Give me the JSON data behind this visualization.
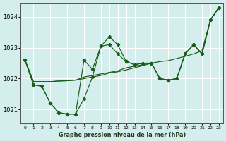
{
  "title": "Graphe pression niveau de la mer (hPa)",
  "bg_color": "#d4eeee",
  "line_color": "#1a5c1a",
  "x": [
    0,
    1,
    2,
    3,
    4,
    5,
    6,
    7,
    8,
    9,
    10,
    11,
    12,
    13,
    14,
    15,
    16,
    17,
    18,
    19,
    20,
    21,
    22,
    23
  ],
  "line1": [
    1022.6,
    1021.8,
    1021.75,
    1021.2,
    1020.9,
    1020.85,
    1020.85,
    1021.35,
    1022.05,
    1023.05,
    1023.35,
    1023.1,
    1022.55,
    1022.45,
    1022.5,
    1022.5,
    1022.0,
    1021.95,
    1022.0,
    1022.8,
    1023.1,
    1022.8,
    1023.9,
    1024.3
  ],
  "line2": [
    1022.6,
    1021.8,
    1021.75,
    1021.2,
    1020.9,
    1020.85,
    1020.85,
    1022.6,
    1022.3,
    1023.05,
    1023.1,
    1022.8,
    1022.55,
    1022.45,
    1022.5,
    1022.5,
    1022.0,
    1021.95,
    1022.0,
    1022.8,
    1023.1,
    1022.8,
    1023.9,
    1024.3
  ],
  "line3": [
    1022.6,
    1021.9,
    1021.9,
    1021.9,
    1021.92,
    1021.93,
    1021.95,
    1022.0,
    1022.05,
    1022.1,
    1022.18,
    1022.22,
    1022.28,
    1022.35,
    1022.42,
    1022.5,
    1022.55,
    1022.58,
    1022.65,
    1022.72,
    1022.8,
    1022.9,
    1023.9,
    1024.3
  ],
  "line4": [
    1022.6,
    1021.9,
    1021.9,
    1021.9,
    1021.92,
    1021.93,
    1021.95,
    1022.05,
    1022.1,
    1022.15,
    1022.2,
    1022.25,
    1022.35,
    1022.4,
    1022.45,
    1022.5,
    1022.0,
    1021.95,
    1022.0,
    1022.8,
    1023.1,
    1022.8,
    1023.9,
    1024.3
  ],
  "ylim": [
    1020.55,
    1024.45
  ],
  "yticks": [
    1021,
    1022,
    1023,
    1024
  ],
  "xlim": [
    -0.5,
    23.5
  ]
}
